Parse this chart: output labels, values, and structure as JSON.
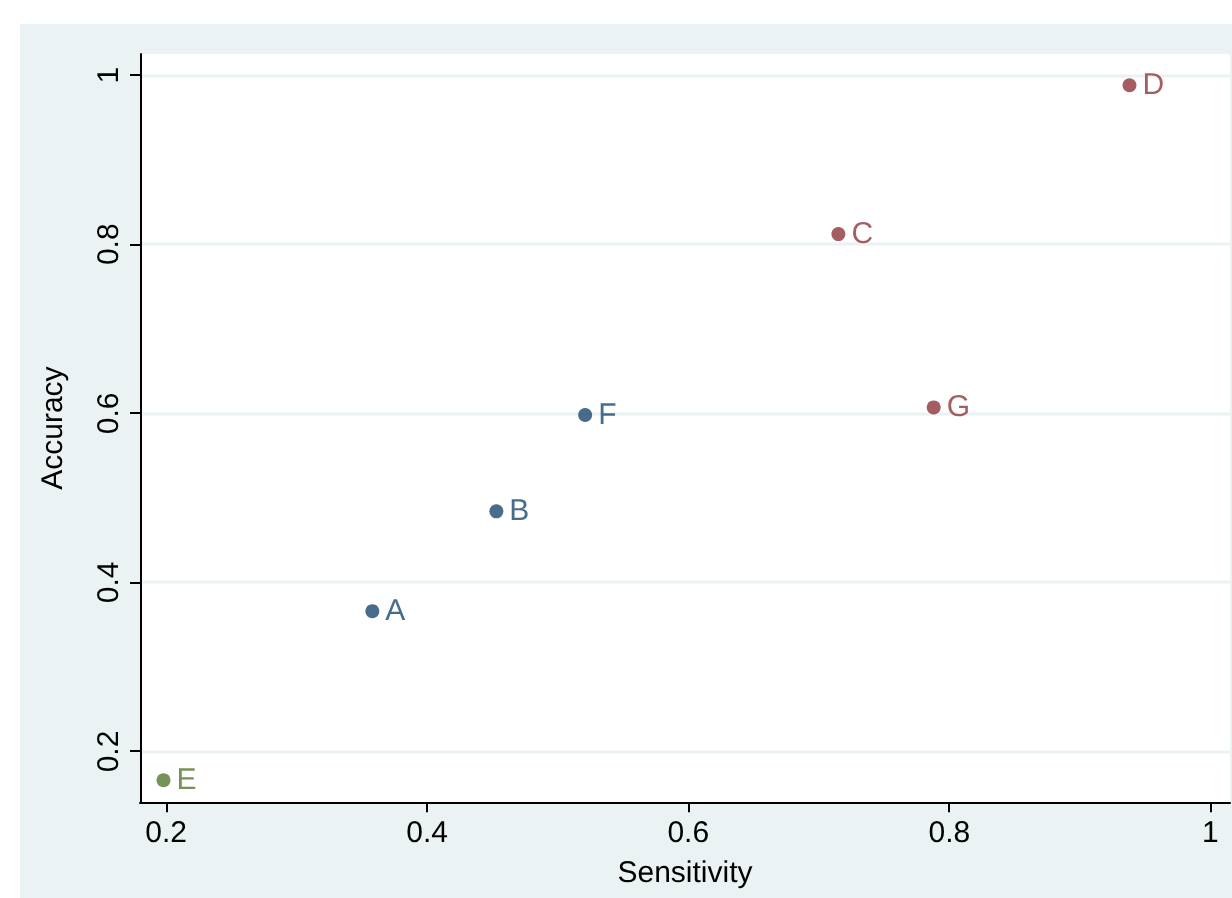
{
  "chart_data": {
    "type": "scatter",
    "xlabel": "Sensitivity",
    "ylabel": "Accuracy",
    "xlim": [
      0.18,
      1.015
    ],
    "ylim": [
      0.14,
      1.025
    ],
    "xticks": [
      0.2,
      0.4,
      0.6,
      0.8,
      1
    ],
    "yticks": [
      0.2,
      0.4,
      0.6,
      0.8,
      1
    ],
    "grid": "y",
    "marker": "circle",
    "series": [
      {
        "color": "#1a476f",
        "x": [
          0.358,
          0.453,
          0.521
        ],
        "values": [
          0.366,
          0.484,
          0.598
        ],
        "value_labels": [
          "A",
          "B",
          "F"
        ]
      },
      {
        "color": "#90353b",
        "x": [
          0.715,
          0.938,
          0.788
        ],
        "values": [
          0.812,
          0.988,
          0.607
        ],
        "value_labels": [
          "C",
          "D",
          "G"
        ]
      },
      {
        "color": "#55752f",
        "x": [
          0.198
        ],
        "values": [
          0.166
        ],
        "value_labels": [
          "E"
        ]
      }
    ]
  }
}
